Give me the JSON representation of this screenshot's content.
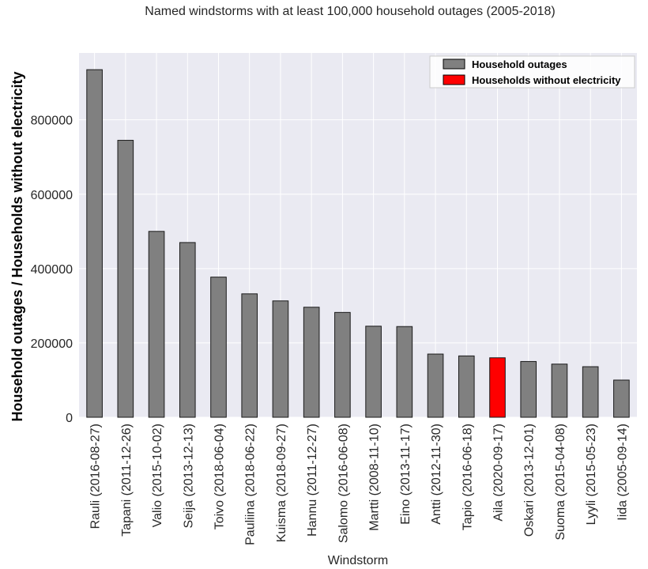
{
  "chart_data": {
    "type": "bar",
    "title": "Named windstorms with at least 100,000 household outages (2005-2018)",
    "xlabel": "Windstorm",
    "ylabel": "Household outages / Households without electricity",
    "ylim": [
      0,
      980000
    ],
    "yticks": [
      0,
      200000,
      400000,
      600000,
      800000
    ],
    "ytick_labels": [
      "0",
      "200000",
      "400000",
      "600000",
      "800000"
    ],
    "grid": true,
    "legend_position": "top-right",
    "categories": [
      "Rauli (2016-08-27)",
      "Tapani (2011-12-26)",
      "Valio (2015-10-02)",
      "Seija (2013-12-13)",
      "Toivo (2018-06-04)",
      "Pauliina (2018-06-22)",
      "Kuisma (2018-09-27)",
      "Hannu (2011-12-27)",
      "Salomo (2016-06-08)",
      "Martti (2008-11-10)",
      "Eino (2013-11-17)",
      "Antti (2012-11-30)",
      "Tapio (2016-06-18)",
      "Aila (2020-09-17)",
      "Oskari (2013-12-01)",
      "Suoma (2015-04-08)",
      "Lyyli (2015-05-23)",
      "Iida (2005-09-14)"
    ],
    "series": [
      {
        "name": "Household outages",
        "color": "#808080",
        "values": [
          935000,
          745000,
          500000,
          470000,
          377000,
          332000,
          313000,
          296000,
          282000,
          245000,
          244000,
          170000,
          165000,
          null,
          150000,
          143000,
          136000,
          100000
        ]
      },
      {
        "name": "Households without electricity",
        "color": "#ff0000",
        "values": [
          null,
          null,
          null,
          null,
          null,
          null,
          null,
          null,
          null,
          null,
          null,
          null,
          null,
          160000,
          null,
          null,
          null,
          null
        ]
      }
    ]
  },
  "style": {
    "plot_background": "#eaeaf2",
    "grid_color": "#ffffff",
    "bar_edge": "#1a1a1a"
  }
}
